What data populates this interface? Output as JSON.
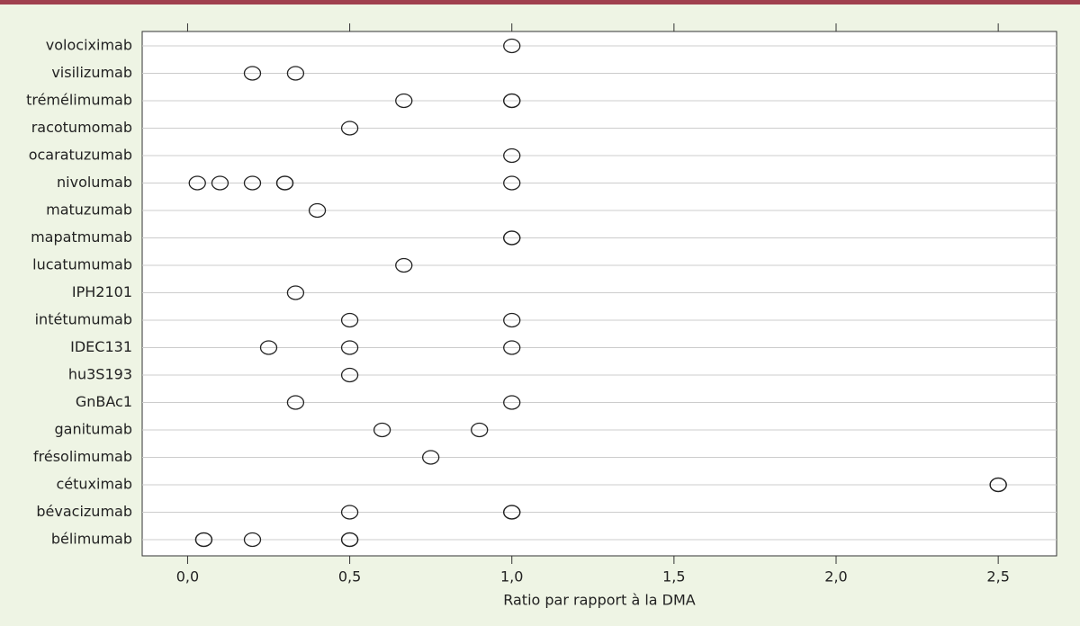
{
  "chart_data": {
    "type": "dot",
    "x_label": "Ratio par rapport à la DMA",
    "categories": [
      "volociximab",
      "visilizumab",
      "trémélimumab",
      "racotumomab",
      "ocaratuzumab",
      "nivolumab",
      "matuzumab",
      "mapatmumab",
      "lucatumumab",
      "IPH2101",
      "intétumumab",
      "IDEC131",
      "hu3S193",
      "GnBAc1",
      "ganitumab",
      "frésolimumab",
      "cétuximab",
      "bévacizumab",
      "bélimumab"
    ],
    "values": [
      [
        1.0
      ],
      [
        0.2,
        0.333
      ],
      [
        0.667,
        1.0,
        1.0
      ],
      [
        0.5
      ],
      [
        1.0
      ],
      [
        0.03,
        0.1,
        0.2,
        0.3,
        0.3,
        1.0
      ],
      [
        0.4
      ],
      [
        1.0,
        1.0
      ],
      [
        0.667
      ],
      [
        0.333
      ],
      [
        0.5,
        1.0
      ],
      [
        0.25,
        0.5,
        1.0
      ],
      [
        0.5
      ],
      [
        0.333,
        1.0
      ],
      [
        0.6,
        0.9
      ],
      [
        0.75
      ],
      [
        2.5,
        2.5
      ],
      [
        0.5,
        1.0,
        1.0
      ],
      [
        0.05,
        0.05,
        0.2,
        0.5,
        0.5
      ]
    ],
    "xlim": [
      -0.14,
      2.68
    ],
    "xticks": [
      {
        "value": 0,
        "label": "0,0"
      },
      {
        "value": 0.5,
        "label": "0,5"
      },
      {
        "value": 1,
        "label": "1,0"
      },
      {
        "value": 1.5,
        "label": "1,5"
      },
      {
        "value": 2,
        "label": "2,0"
      },
      {
        "value": 2.5,
        "label": "2,5"
      }
    ],
    "grid": true,
    "marker_color": "#222222"
  }
}
